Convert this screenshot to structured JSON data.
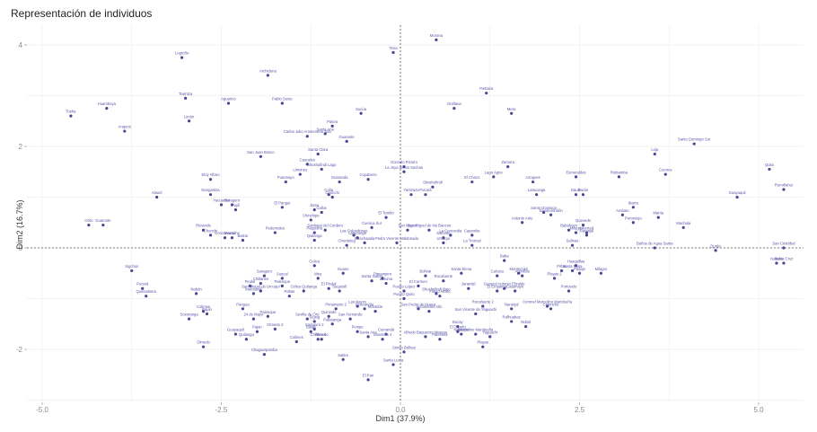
{
  "chart_data": {
    "type": "scatter",
    "title": "Representación de individuos",
    "xlabel": "Dim1 (37.9%)",
    "ylabel": "Dim2 (16.7%)",
    "xlim": [
      -5.1,
      5.6
    ],
    "ylim": [
      -2.9,
      4.4
    ],
    "x_ticks": [
      -5.0,
      -2.5,
      0.0,
      2.5,
      5.0
    ],
    "x_tick_labels": [
      "-5.0",
      "-2.5",
      "0.0",
      "2.5",
      "5.0"
    ],
    "y_ticks": [
      -2,
      0,
      2,
      4
    ],
    "y_tick_labels": [
      "-2",
      "0",
      "2",
      "4"
    ],
    "grid": true,
    "reference_lines": {
      "x": 0,
      "y": 0,
      "style": "dashed"
    },
    "point_color": "#4a4590",
    "label_color": "#5a55a8",
    "points": [
      {
        "label": "Tosha",
        "x": -4.6,
        "y": 2.6
      },
      {
        "label": "Huamboya",
        "x": -4.1,
        "y": 2.75
      },
      {
        "label": "Arajuno",
        "x": -3.85,
        "y": 2.3
      },
      {
        "label": "Logroño",
        "x": -3.05,
        "y": 3.75
      },
      {
        "label": "Tiwintza",
        "x": -3.0,
        "y": 2.95
      },
      {
        "label": "Limón",
        "x": -2.95,
        "y": 2.5
      },
      {
        "label": "Aguarico",
        "x": -2.4,
        "y": 2.85
      },
      {
        "label": "Archidona",
        "x": -1.85,
        "y": 3.4
      },
      {
        "label": "Pablo Sexto",
        "x": -1.65,
        "y": 2.85
      },
      {
        "label": "Carlos Julio Arosemena Tola",
        "x": -1.3,
        "y": 2.2
      },
      {
        "label": "Santa Ana",
        "x": -1.05,
        "y": 2.25
      },
      {
        "label": "Palora",
        "x": -0.95,
        "y": 2.4
      },
      {
        "label": "Guamote",
        "x": -0.75,
        "y": 2.1
      },
      {
        "label": "Sucúa",
        "x": -0.55,
        "y": 2.65
      },
      {
        "label": "Tena",
        "x": -0.1,
        "y": 3.85
      },
      {
        "label": "Morona",
        "x": 0.5,
        "y": 4.1
      },
      {
        "label": "Orellana",
        "x": 0.75,
        "y": 2.75
      },
      {
        "label": "Pastaza",
        "x": 1.2,
        "y": 3.05
      },
      {
        "label": "Mera",
        "x": 1.55,
        "y": 2.65
      },
      {
        "label": "San Juan Bosco",
        "x": -1.95,
        "y": 1.8
      },
      {
        "label": "Santa Clara",
        "x": -1.15,
        "y": 1.85
      },
      {
        "label": "Cascales",
        "x": -1.3,
        "y": 1.65
      },
      {
        "label": "Limones",
        "x": -1.4,
        "y": 1.45
      },
      {
        "label": "Shushufindi Lago",
        "x": -1.1,
        "y": 1.55
      },
      {
        "label": "Putumayo",
        "x": -1.6,
        "y": 1.3
      },
      {
        "label": "Guaranda",
        "x": -0.85,
        "y": 1.3
      },
      {
        "label": "Cuyabeno",
        "x": -0.45,
        "y": 1.35
      },
      {
        "label": "Gonzalo Pizarro",
        "x": 0.05,
        "y": 1.6
      },
      {
        "label": "La Joya de los Sachas",
        "x": 0.05,
        "y": 1.5
      },
      {
        "label": "Shushufindi",
        "x": 0.45,
        "y": 1.2
      },
      {
        "label": "Yantzaza",
        "x": 0.15,
        "y": 1.05
      },
      {
        "label": "Pucará",
        "x": 0.35,
        "y": 1.05
      },
      {
        "label": "El Chaco",
        "x": 1.0,
        "y": 1.3
      },
      {
        "label": "Lago Agrio",
        "x": 1.3,
        "y": 1.4
      },
      {
        "label": "Zamora",
        "x": 1.5,
        "y": 1.6
      },
      {
        "label": "Azogues",
        "x": 1.85,
        "y": 1.3
      },
      {
        "label": "Latacunga",
        "x": 1.9,
        "y": 1.05
      },
      {
        "label": "Colta",
        "x": -1.0,
        "y": 1.05
      },
      {
        "label": "Chunchi",
        "x": -0.95,
        "y": 1.0
      },
      {
        "label": "Orito",
        "x": -4.35,
        "y": 0.45
      },
      {
        "label": "Guamote",
        "x": -4.15,
        "y": 0.45
      },
      {
        "label": "Alausí",
        "x": -3.4,
        "y": 1.0
      },
      {
        "label": "Eloy Alfaro",
        "x": -2.65,
        "y": 1.35
      },
      {
        "label": "Nangaritza",
        "x": -2.65,
        "y": 1.05
      },
      {
        "label": "Yacuambi",
        "x": -2.5,
        "y": 0.85
      },
      {
        "label": "Saraguro",
        "x": -2.35,
        "y": 0.85
      },
      {
        "label": "Pujilí",
        "x": -2.3,
        "y": 0.75
      },
      {
        "label": "El Pangui",
        "x": -1.65,
        "y": 0.8
      },
      {
        "label": "Jama",
        "x": -1.2,
        "y": 0.75
      },
      {
        "label": "Cañar",
        "x": -1.1,
        "y": 0.7
      },
      {
        "label": "Chinchipe",
        "x": -1.25,
        "y": 0.55
      },
      {
        "label": "Santiago del Cordero",
        "x": -1.05,
        "y": 0.35
      },
      {
        "label": "Paquisha",
        "x": -1.2,
        "y": 0.3
      },
      {
        "label": "Quilanga",
        "x": -1.2,
        "y": 0.15
      },
      {
        "label": "Rioverde",
        "x": -2.75,
        "y": 0.35
      },
      {
        "label": "Chunchi",
        "x": -2.65,
        "y": 0.25
      },
      {
        "label": "Gonzanamá",
        "x": -2.45,
        "y": 0.2
      },
      {
        "label": "Mocache",
        "x": -2.35,
        "y": 0.2
      },
      {
        "label": "Balzar",
        "x": -2.2,
        "y": 0.15
      },
      {
        "label": "Pedernales",
        "x": -1.75,
        "y": 0.3
      },
      {
        "label": "El Tambo",
        "x": -0.2,
        "y": 0.6
      },
      {
        "label": "Cuenca Sur",
        "x": -0.4,
        "y": 0.4
      },
      {
        "label": "San Miguel",
        "x": 0.1,
        "y": 0.35
      },
      {
        "label": "San Miguel de los Bancos",
        "x": 0.4,
        "y": 0.35
      },
      {
        "label": "Las Golondrinas",
        "x": -0.65,
        "y": 0.25
      },
      {
        "label": "Latacunga",
        "x": -0.6,
        "y": 0.2
      },
      {
        "label": "Guachapala",
        "x": -0.5,
        "y": 0.1
      },
      {
        "label": "Chordeleg",
        "x": -0.75,
        "y": 0.05
      },
      {
        "label": "Pedro Vicente Maldonado",
        "x": -0.05,
        "y": 0.1
      },
      {
        "label": "La Concordia",
        "x": 0.7,
        "y": 0.25
      },
      {
        "label": "Cayambe",
        "x": 1.0,
        "y": 0.25
      },
      {
        "label": "Salcedo",
        "x": 0.6,
        "y": 0.2
      },
      {
        "label": "Urcuquí",
        "x": 0.6,
        "y": 0.1
      },
      {
        "label": "La Troncal",
        "x": 1.0,
        "y": 0.05
      },
      {
        "label": "Santo Domingo",
        "x": 2.0,
        "y": 0.7
      },
      {
        "label": "Samborondón",
        "x": 2.1,
        "y": 0.65
      },
      {
        "label": "Antonio Ante",
        "x": 1.7,
        "y": 0.5
      },
      {
        "label": "Esmeraldas",
        "x": 2.45,
        "y": 1.4
      },
      {
        "label": "Riobamba",
        "x": 3.05,
        "y": 1.4
      },
      {
        "label": "Daule",
        "x": 2.45,
        "y": 1.05
      },
      {
        "label": "Durán",
        "x": 2.55,
        "y": 1.05
      },
      {
        "label": "Loja",
        "x": 3.55,
        "y": 1.85
      },
      {
        "label": "Cuenca",
        "x": 3.7,
        "y": 1.45
      },
      {
        "label": "Santo Domingo Sur",
        "x": 4.1,
        "y": 2.05
      },
      {
        "label": "Ibarra",
        "x": 3.25,
        "y": 0.8
      },
      {
        "label": "Ambato",
        "x": 3.1,
        "y": 0.65
      },
      {
        "label": "Portoviejo",
        "x": 3.25,
        "y": 0.5
      },
      {
        "label": "Manta",
        "x": 3.6,
        "y": 0.6
      },
      {
        "label": "Machala",
        "x": 3.95,
        "y": 0.4
      },
      {
        "label": "Guayaquil",
        "x": 4.7,
        "y": 1.0
      },
      {
        "label": "Quito",
        "x": 5.15,
        "y": 1.55
      },
      {
        "label": "Rumiñahui",
        "x": 5.35,
        "y": 1.15
      },
      {
        "label": "Quevedo",
        "x": 2.55,
        "y": 0.45
      },
      {
        "label": "Babahoyo",
        "x": 2.35,
        "y": 0.35
      },
      {
        "label": "Milagro",
        "x": 2.45,
        "y": 0.3
      },
      {
        "label": "Libertad",
        "x": 2.6,
        "y": 0.3
      },
      {
        "label": "Naranjal",
        "x": 2.6,
        "y": 0.25
      },
      {
        "label": "Baños de Agua Santa",
        "x": 3.55,
        "y": 0.0
      },
      {
        "label": "Durán",
        "x": 4.4,
        "y": -0.05
      },
      {
        "label": "Salinas",
        "x": 2.4,
        "y": 0.05
      },
      {
        "label": "San Cristóbal",
        "x": 5.35,
        "y": 0.0
      },
      {
        "label": "Isabela",
        "x": 5.25,
        "y": -0.3
      },
      {
        "label": "Santa Cruz",
        "x": 5.35,
        "y": -0.3
      },
      {
        "label": "Sigchos",
        "x": -3.75,
        "y": -0.45
      },
      {
        "label": "Pucará",
        "x": -3.6,
        "y": -0.8
      },
      {
        "label": "Quinsaloma",
        "x": -3.55,
        "y": -0.95
      },
      {
        "label": "Nabón",
        "x": -2.85,
        "y": -0.9
      },
      {
        "label": "Colimes",
        "x": -2.75,
        "y": -1.25
      },
      {
        "label": "Paján",
        "x": -2.7,
        "y": -1.3
      },
      {
        "label": "Sozoranga",
        "x": -2.95,
        "y": -1.4
      },
      {
        "label": "Olmedo",
        "x": -2.75,
        "y": -1.95
      },
      {
        "label": "Saraguro",
        "x": -1.9,
        "y": -0.55
      },
      {
        "label": "Suscal",
        "x": -1.65,
        "y": -0.6
      },
      {
        "label": "Chillanes",
        "x": -1.95,
        "y": -0.7
      },
      {
        "label": "Pindal",
        "x": -2.1,
        "y": -0.75
      },
      {
        "label": "San Miguel de Urcuquí",
        "x": -1.95,
        "y": -0.85
      },
      {
        "label": "Marcabelí",
        "x": -2.05,
        "y": -0.9
      },
      {
        "label": "Palenque",
        "x": -1.65,
        "y": -0.75
      },
      {
        "label": "Paltas",
        "x": -1.55,
        "y": -0.95
      },
      {
        "label": "Pangua",
        "x": -2.2,
        "y": -1.2
      },
      {
        "label": "24 de Mayo",
        "x": -2.05,
        "y": -1.4
      },
      {
        "label": "Palenque",
        "x": -1.85,
        "y": -1.35
      },
      {
        "label": "Guayaquil",
        "x": -2.3,
        "y": -1.7
      },
      {
        "label": "Pajan",
        "x": -2.0,
        "y": -1.65
      },
      {
        "label": "Olmedo 2",
        "x": -1.75,
        "y": -1.6
      },
      {
        "label": "Quilanga",
        "x": -2.15,
        "y": -1.8
      },
      {
        "label": "Colimes",
        "x": -1.45,
        "y": -1.85
      },
      {
        "label": "Chillanes",
        "x": -1.15,
        "y": -1.8
      },
      {
        "label": "Chaguarpamba",
        "x": -1.9,
        "y": -2.1
      },
      {
        "label": "Celica",
        "x": -1.2,
        "y": -0.35
      },
      {
        "label": "Mira",
        "x": -1.15,
        "y": -0.6
      },
      {
        "label": "Olmedo",
        "x": -1.1,
        "y": -1.8
      },
      {
        "label": "Guano",
        "x": -0.8,
        "y": -0.5
      },
      {
        "label": "Santa Isabel",
        "x": -0.4,
        "y": -0.65
      },
      {
        "label": "Pimampiro",
        "x": -0.25,
        "y": -0.6
      },
      {
        "label": "Zaruma",
        "x": -0.2,
        "y": -0.7
      },
      {
        "label": "Célica Quilanga",
        "x": -1.35,
        "y": -0.85
      },
      {
        "label": "El Pindal",
        "x": -1.0,
        "y": -0.8
      },
      {
        "label": "Saquisilí",
        "x": -0.85,
        "y": -0.85
      },
      {
        "label": "Las Naves",
        "x": -0.6,
        "y": -1.15
      },
      {
        "label": "Echeandía",
        "x": -0.5,
        "y": -1.2
      },
      {
        "label": "Montúfar",
        "x": -0.35,
        "y": -1.25
      },
      {
        "label": "Pimampiro 2",
        "x": -0.9,
        "y": -1.2
      },
      {
        "label": "Quinindé",
        "x": -1.0,
        "y": -1.35
      },
      {
        "label": "San Fernando",
        "x": -0.7,
        "y": -1.4
      },
      {
        "label": "Sevilla de Oro",
        "x": -1.3,
        "y": -1.4
      },
      {
        "label": "Sígsig",
        "x": -1.2,
        "y": -1.45
      },
      {
        "label": "Pallatanga",
        "x": -0.95,
        "y": -1.5
      },
      {
        "label": "Penipe",
        "x": -0.6,
        "y": -1.65
      },
      {
        "label": "Santa Ana",
        "x": -0.45,
        "y": -1.75
      },
      {
        "label": "Cumandá",
        "x": -0.2,
        "y": -1.7
      },
      {
        "label": "Guamote 2",
        "x": -0.25,
        "y": -1.8
      },
      {
        "label": "Saraguro 2",
        "x": -1.2,
        "y": -1.6
      },
      {
        "label": "Balao",
        "x": -1.25,
        "y": -1.65
      },
      {
        "label": "Puerto López",
        "x": 0.05,
        "y": -0.85
      },
      {
        "label": "Puerto Quito",
        "x": 0.05,
        "y": -1.0
      },
      {
        "label": "El Carmen",
        "x": 0.25,
        "y": -0.75
      },
      {
        "label": "Bolívar",
        "x": 0.35,
        "y": -0.55
      },
      {
        "label": "Rocafuerte",
        "x": 0.6,
        "y": -0.65
      },
      {
        "label": "Santa Elena",
        "x": 0.85,
        "y": -0.5
      },
      {
        "label": "Jaramijó",
        "x": 0.95,
        "y": -0.8
      },
      {
        "label": "Flavio Alfaro",
        "x": 0.55,
        "y": -0.95
      },
      {
        "label": "San Pedro de Huaca",
        "x": 0.25,
        "y": -1.2
      },
      {
        "label": "Sucumbíos Alto",
        "x": 0.4,
        "y": -1.25
      },
      {
        "label": "San Vicente de Yaguachi",
        "x": 1.05,
        "y": -1.3
      },
      {
        "label": "Rocafuerte 2",
        "x": 1.15,
        "y": -1.15
      },
      {
        "label": "Shushufindi Bajo",
        "x": 0.5,
        "y": -0.9
      },
      {
        "label": "Alfredo Baquerizo Moreno",
        "x": 0.35,
        "y": -1.75
      },
      {
        "label": "Simón Bolívar",
        "x": 0.05,
        "y": -2.05
      },
      {
        "label": "Santa Lucía",
        "x": -0.1,
        "y": -2.3
      },
      {
        "label": "Salitre",
        "x": -0.8,
        "y": -2.2
      },
      {
        "label": "El Pan",
        "x": -0.45,
        "y": -2.6
      },
      {
        "label": "Palestina",
        "x": 0.55,
        "y": -1.8
      },
      {
        "label": "Naranjito",
        "x": 0.85,
        "y": -1.7
      },
      {
        "label": "El Triunfo",
        "x": 0.8,
        "y": -1.65
      },
      {
        "label": "Marcelino Maridueña",
        "x": 1.05,
        "y": -1.7
      },
      {
        "label": "Bucay",
        "x": 0.8,
        "y": -1.55
      },
      {
        "label": "Yaguachi",
        "x": 1.25,
        "y": -1.75
      },
      {
        "label": "Playas",
        "x": 1.15,
        "y": -1.95
      },
      {
        "label": "Rafhuabaz",
        "x": 1.55,
        "y": -1.45
      },
      {
        "label": "Nobol",
        "x": 1.75,
        "y": -1.55
      },
      {
        "label": "Naranjal",
        "x": 1.55,
        "y": -1.2
      },
      {
        "label": "Baba",
        "x": 1.45,
        "y": -0.25
      },
      {
        "label": "Montecristi",
        "x": 1.65,
        "y": -0.5
      },
      {
        "label": "Arenillas",
        "x": 1.7,
        "y": -0.55
      },
      {
        "label": "Calceta",
        "x": 1.35,
        "y": -0.55
      },
      {
        "label": "General Antonio Elizalde",
        "x": 1.45,
        "y": -0.8
      },
      {
        "label": "El Empalme",
        "x": 1.35,
        "y": -0.85
      },
      {
        "label": "Catamayo",
        "x": 1.6,
        "y": -0.85
      },
      {
        "label": "Huaquillas",
        "x": 2.45,
        "y": -0.35
      },
      {
        "label": "Santa Rosa",
        "x": 2.4,
        "y": -0.45
      },
      {
        "label": "Pasaje",
        "x": 2.5,
        "y": -0.5
      },
      {
        "label": "Piñas",
        "x": 2.25,
        "y": -0.45
      },
      {
        "label": "Playas 2",
        "x": 2.15,
        "y": -0.6
      },
      {
        "label": "Portovelo",
        "x": 2.35,
        "y": -0.85
      },
      {
        "label": "Milagro",
        "x": 2.8,
        "y": -0.5
      },
      {
        "label": "Coronel Marcelino Maridueña",
        "x": 2.05,
        "y": -1.15
      },
      {
        "label": "Colonche",
        "x": 2.1,
        "y": -1.2
      }
    ]
  }
}
